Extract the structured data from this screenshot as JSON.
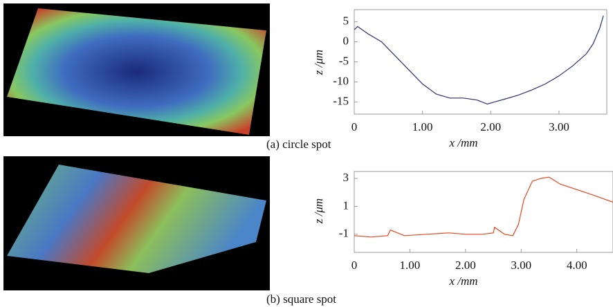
{
  "chart_data": [
    {
      "type": "line",
      "caption": "(a) circle spot",
      "xlabel": "x /mm",
      "ylabel": "z /μm",
      "x": [
        0,
        0.05,
        0.2,
        0.4,
        0.6,
        0.8,
        1.0,
        1.2,
        1.4,
        1.6,
        1.8,
        1.95,
        2.05,
        2.2,
        2.4,
        2.6,
        2.8,
        3.0,
        3.2,
        3.4,
        3.5,
        3.6,
        3.65
      ],
      "values": [
        3,
        3.8,
        2,
        0,
        -3.5,
        -7,
        -10.5,
        -13,
        -14,
        -14,
        -14.5,
        -15.5,
        -15,
        -14.3,
        -13.3,
        -12,
        -10.5,
        -8.5,
        -6,
        -3,
        -0.5,
        3.5,
        6.5
      ],
      "color": "#2a2f6e",
      "xlim": [
        0,
        3.7
      ],
      "ylim": [
        -18,
        8
      ],
      "xticks": [
        0,
        {
          "value": 1,
          "label": "1.00"
        },
        {
          "value": 2,
          "label": "2.00"
        },
        {
          "value": 3,
          "label": "3.00"
        }
      ],
      "yticks": [
        -15,
        -10,
        -5,
        0,
        5
      ]
    },
    {
      "type": "line",
      "caption": "(b) square spot",
      "xlabel": "x /mm",
      "ylabel": "z /μm",
      "x": [
        0,
        0.3,
        0.6,
        0.65,
        0.9,
        1.3,
        1.7,
        2.0,
        2.3,
        2.5,
        2.52,
        2.7,
        2.85,
        2.95,
        3.05,
        3.2,
        3.35,
        3.5,
        3.7,
        4.0,
        4.3,
        4.65
      ],
      "values": [
        -1.1,
        -1.2,
        -1.1,
        -0.7,
        -1.1,
        -1.0,
        -0.9,
        -1.0,
        -1.0,
        -0.9,
        -0.5,
        -1.0,
        -1.1,
        -0.3,
        1.5,
        2.8,
        3.0,
        3.1,
        2.6,
        2.2,
        1.8,
        1.3
      ],
      "color": "#e8451c",
      "xlim": [
        0,
        4.65
      ],
      "ylim": [
        -2.3,
        3.5
      ],
      "xticks": [
        0,
        {
          "value": 1,
          "label": "1.00"
        },
        {
          "value": 2,
          "label": "2.00"
        },
        {
          "value": 3,
          "label": "3.00"
        },
        {
          "value": 4,
          "label": "4.00"
        }
      ],
      "yticks": [
        -1,
        1,
        3
      ]
    }
  ]
}
